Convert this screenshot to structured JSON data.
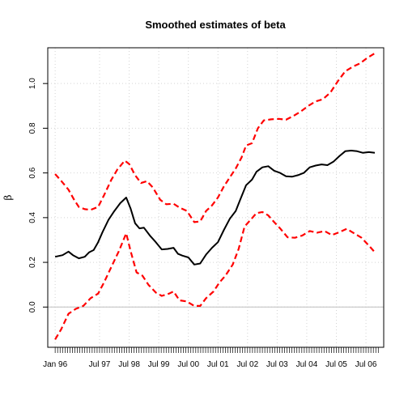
{
  "chart_data": {
    "type": "line",
    "title": "Smoothed estimates of beta",
    "xlabel": "",
    "ylabel": "β",
    "xlim": [
      1995.75,
      2007.1
    ],
    "ylim": [
      -0.18,
      1.16
    ],
    "x_ticks": [
      {
        "value": 1996.0,
        "label": "Jan 96"
      },
      {
        "value": 1997.5,
        "label": "Jul 97"
      },
      {
        "value": 1998.5,
        "label": "Jul 98"
      },
      {
        "value": 1999.5,
        "label": "Jul 99"
      },
      {
        "value": 2000.5,
        "label": "Jul 00"
      },
      {
        "value": 2001.5,
        "label": "Jul 01"
      },
      {
        "value": 2002.5,
        "label": "Jul 02"
      },
      {
        "value": 2003.5,
        "label": "Jul 03"
      },
      {
        "value": 2004.5,
        "label": "Jul 04"
      },
      {
        "value": 2005.5,
        "label": "Jul 05"
      },
      {
        "value": 2006.5,
        "label": "Jul 06"
      }
    ],
    "y_ticks": [
      0.0,
      0.2,
      0.4,
      0.6,
      0.8,
      1.0
    ],
    "y_tick_labels": [
      "0.0",
      "0.2",
      "0.4",
      "0.6",
      "0.8",
      "1.0"
    ],
    "grid": true,
    "zero_line": true,
    "minor_ticks": {
      "from": 1996.0,
      "to": 2006.917,
      "step": 0.08333
    },
    "series": [
      {
        "style": "solid",
        "color": "#000000",
        "points": [
          [
            1996.0,
            0.225
          ],
          [
            1996.25,
            0.232
          ],
          [
            1996.45,
            0.248
          ],
          [
            1996.6,
            0.232
          ],
          [
            1996.8,
            0.218
          ],
          [
            1997.0,
            0.225
          ],
          [
            1997.15,
            0.245
          ],
          [
            1997.3,
            0.255
          ],
          [
            1997.45,
            0.29
          ],
          [
            1997.6,
            0.335
          ],
          [
            1997.8,
            0.39
          ],
          [
            1998.0,
            0.43
          ],
          [
            1998.2,
            0.465
          ],
          [
            1998.4,
            0.49
          ],
          [
            1998.55,
            0.44
          ],
          [
            1998.7,
            0.375
          ],
          [
            1998.85,
            0.352
          ],
          [
            1999.0,
            0.355
          ],
          [
            1999.2,
            0.32
          ],
          [
            1999.4,
            0.29
          ],
          [
            1999.6,
            0.258
          ],
          [
            1999.8,
            0.26
          ],
          [
            2000.0,
            0.265
          ],
          [
            2000.15,
            0.238
          ],
          [
            2000.3,
            0.23
          ],
          [
            2000.5,
            0.222
          ],
          [
            2000.7,
            0.19
          ],
          [
            2000.9,
            0.195
          ],
          [
            2001.1,
            0.235
          ],
          [
            2001.3,
            0.265
          ],
          [
            2001.5,
            0.29
          ],
          [
            2001.7,
            0.345
          ],
          [
            2001.9,
            0.395
          ],
          [
            2002.1,
            0.43
          ],
          [
            2002.25,
            0.48
          ],
          [
            2002.45,
            0.545
          ],
          [
            2002.65,
            0.57
          ],
          [
            2002.8,
            0.605
          ],
          [
            2003.0,
            0.625
          ],
          [
            2003.2,
            0.63
          ],
          [
            2003.4,
            0.61
          ],
          [
            2003.6,
            0.6
          ],
          [
            2003.8,
            0.585
          ],
          [
            2004.0,
            0.583
          ],
          [
            2004.2,
            0.59
          ],
          [
            2004.4,
            0.6
          ],
          [
            2004.6,
            0.625
          ],
          [
            2004.8,
            0.633
          ],
          [
            2005.0,
            0.638
          ],
          [
            2005.2,
            0.635
          ],
          [
            2005.4,
            0.65
          ],
          [
            2005.6,
            0.675
          ],
          [
            2005.8,
            0.697
          ],
          [
            2006.0,
            0.7
          ],
          [
            2006.2,
            0.697
          ],
          [
            2006.4,
            0.69
          ],
          [
            2006.6,
            0.693
          ],
          [
            2006.8,
            0.69
          ]
        ]
      },
      {
        "style": "dashed",
        "color": "#ff0000",
        "points": [
          [
            1996.0,
            0.595
          ],
          [
            1996.2,
            0.565
          ],
          [
            1996.45,
            0.525
          ],
          [
            1996.65,
            0.478
          ],
          [
            1996.8,
            0.448
          ],
          [
            1997.0,
            0.438
          ],
          [
            1997.2,
            0.435
          ],
          [
            1997.45,
            0.448
          ],
          [
            1997.65,
            0.5
          ],
          [
            1997.9,
            0.57
          ],
          [
            1998.1,
            0.615
          ],
          [
            1998.35,
            0.655
          ],
          [
            1998.5,
            0.64
          ],
          [
            1998.7,
            0.59
          ],
          [
            1998.9,
            0.555
          ],
          [
            1999.1,
            0.563
          ],
          [
            1999.3,
            0.535
          ],
          [
            1999.55,
            0.48
          ],
          [
            1999.75,
            0.46
          ],
          [
            2000.0,
            0.462
          ],
          [
            2000.2,
            0.445
          ],
          [
            2000.45,
            0.43
          ],
          [
            2000.7,
            0.38
          ],
          [
            2000.9,
            0.383
          ],
          [
            2001.1,
            0.43
          ],
          [
            2001.3,
            0.455
          ],
          [
            2001.5,
            0.49
          ],
          [
            2001.7,
            0.54
          ],
          [
            2001.95,
            0.59
          ],
          [
            2002.1,
            0.62
          ],
          [
            2002.3,
            0.67
          ],
          [
            2002.45,
            0.723
          ],
          [
            2002.65,
            0.733
          ],
          [
            2002.85,
            0.8
          ],
          [
            2003.05,
            0.835
          ],
          [
            2003.3,
            0.84
          ],
          [
            2003.55,
            0.842
          ],
          [
            2003.8,
            0.838
          ],
          [
            2004.05,
            0.855
          ],
          [
            2004.3,
            0.875
          ],
          [
            2004.55,
            0.9
          ],
          [
            2004.8,
            0.92
          ],
          [
            2005.05,
            0.93
          ],
          [
            2005.3,
            0.96
          ],
          [
            2005.55,
            1.01
          ],
          [
            2005.8,
            1.055
          ],
          [
            2006.05,
            1.075
          ],
          [
            2006.3,
            1.09
          ],
          [
            2006.55,
            1.115
          ],
          [
            2006.8,
            1.135
          ]
        ]
      },
      {
        "style": "dashed",
        "color": "#ff0000",
        "points": [
          [
            1996.0,
            -0.145
          ],
          [
            1996.2,
            -0.1
          ],
          [
            1996.45,
            -0.03
          ],
          [
            1996.7,
            -0.008
          ],
          [
            1996.95,
            0.005
          ],
          [
            1997.2,
            0.04
          ],
          [
            1997.45,
            0.06
          ],
          [
            1997.65,
            0.11
          ],
          [
            1997.9,
            0.18
          ],
          [
            1998.15,
            0.25
          ],
          [
            1998.4,
            0.33
          ],
          [
            1998.55,
            0.25
          ],
          [
            1998.75,
            0.155
          ],
          [
            1998.95,
            0.14
          ],
          [
            1999.15,
            0.1
          ],
          [
            1999.4,
            0.065
          ],
          [
            1999.6,
            0.05
          ],
          [
            1999.85,
            0.06
          ],
          [
            2000.0,
            0.07
          ],
          [
            2000.2,
            0.03
          ],
          [
            2000.45,
            0.025
          ],
          [
            2000.7,
            0.005
          ],
          [
            2000.9,
            0.005
          ],
          [
            2001.1,
            0.04
          ],
          [
            2001.35,
            0.07
          ],
          [
            2001.55,
            0.11
          ],
          [
            2001.75,
            0.14
          ],
          [
            2002.0,
            0.19
          ],
          [
            2002.2,
            0.26
          ],
          [
            2002.4,
            0.36
          ],
          [
            2002.6,
            0.39
          ],
          [
            2002.8,
            0.42
          ],
          [
            2003.0,
            0.425
          ],
          [
            2003.2,
            0.41
          ],
          [
            2003.4,
            0.38
          ],
          [
            2003.6,
            0.352
          ],
          [
            2003.85,
            0.312
          ],
          [
            2004.1,
            0.31
          ],
          [
            2004.35,
            0.32
          ],
          [
            2004.6,
            0.34
          ],
          [
            2004.85,
            0.333
          ],
          [
            2005.1,
            0.34
          ],
          [
            2005.35,
            0.322
          ],
          [
            2005.6,
            0.335
          ],
          [
            2005.85,
            0.35
          ],
          [
            2006.1,
            0.33
          ],
          [
            2006.35,
            0.31
          ],
          [
            2006.6,
            0.275
          ],
          [
            2006.8,
            0.245
          ]
        ]
      }
    ]
  }
}
